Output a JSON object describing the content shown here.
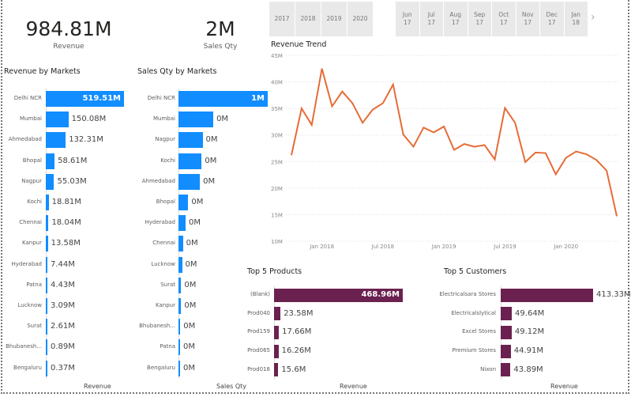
{
  "cards": {
    "revenue": {
      "value": "984.81M",
      "label": "Revenue"
    },
    "sales_qty": {
      "value": "2M",
      "label": "Sales Qty"
    }
  },
  "year_slicer": [
    "2017",
    "2018",
    "2019",
    "2020"
  ],
  "month_slicer": [
    "Jun 17",
    "Jul 17",
    "Aug 17",
    "Sep 17",
    "Oct 17",
    "Nov 17",
    "Dec 17",
    "Jan 18"
  ],
  "colors": {
    "blue": "#118dff",
    "line": "#e66c37",
    "maroon": "#6b2150"
  },
  "revenue_by_markets": {
    "title": "Revenue by Markets",
    "axis_title": "Revenue",
    "items": [
      {
        "name": "Delhi NCR",
        "value": 519.51,
        "label": "519.51M"
      },
      {
        "name": "Mumbai",
        "value": 150.08,
        "label": "150.08M"
      },
      {
        "name": "Ahmedabad",
        "value": 132.31,
        "label": "132.31M"
      },
      {
        "name": "Bhopal",
        "value": 58.61,
        "label": "58.61M"
      },
      {
        "name": "Nagpur",
        "value": 55.03,
        "label": "55.03M"
      },
      {
        "name": "Kochi",
        "value": 18.81,
        "label": "18.81M"
      },
      {
        "name": "Chennai",
        "value": 18.04,
        "label": "18.04M"
      },
      {
        "name": "Kanpur",
        "value": 13.58,
        "label": "13.58M"
      },
      {
        "name": "Hyderabad",
        "value": 7.44,
        "label": "7.44M"
      },
      {
        "name": "Patna",
        "value": 4.43,
        "label": "4.43M"
      },
      {
        "name": "Lucknow",
        "value": 3.09,
        "label": "3.09M"
      },
      {
        "name": "Surat",
        "value": 2.61,
        "label": "2.61M"
      },
      {
        "name": "Bhubanesh...",
        "value": 0.89,
        "label": "0.89M"
      },
      {
        "name": "Bengaluru",
        "value": 0.37,
        "label": "0.37M"
      }
    ]
  },
  "sales_qty_by_markets": {
    "title": "Sales Qty by Markets",
    "axis_title": "Sales Qty",
    "items": [
      {
        "name": "Delhi NCR",
        "value": 1.0,
        "label": "1M"
      },
      {
        "name": "Mumbai",
        "value": 0.39,
        "label": "0M"
      },
      {
        "name": "Nagpur",
        "value": 0.27,
        "label": "0M"
      },
      {
        "name": "Kochi",
        "value": 0.26,
        "label": "0M"
      },
      {
        "name": "Ahmedabad",
        "value": 0.24,
        "label": "0M"
      },
      {
        "name": "Bhopal",
        "value": 0.11,
        "label": "0M"
      },
      {
        "name": "Hyderabad",
        "value": 0.08,
        "label": "0M"
      },
      {
        "name": "Chennai",
        "value": 0.05,
        "label": "0M"
      },
      {
        "name": "Lucknow",
        "value": 0.04,
        "label": "0M"
      },
      {
        "name": "Surat",
        "value": 0.03,
        "label": "0M"
      },
      {
        "name": "Kanpur",
        "value": 0.03,
        "label": "0M"
      },
      {
        "name": "Bhubanesh...",
        "value": 0.02,
        "label": "0M"
      },
      {
        "name": "Patna",
        "value": 0.01,
        "label": "0M"
      },
      {
        "name": "Bengaluru",
        "value": 0.01,
        "label": "0M"
      }
    ]
  },
  "chart_data": {
    "type": "line",
    "title": "Revenue Trend",
    "ylim": [
      10,
      45
    ],
    "y_unit": "M",
    "y_ticks": [
      "10M",
      "15M",
      "20M",
      "25M",
      "30M",
      "35M",
      "40M",
      "45M"
    ],
    "x_ticks": [
      "Jan 2018",
      "Jul 2018",
      "Jan 2019",
      "Jul 2019",
      "Jan 2020"
    ],
    "x": [
      "2017-10",
      "2017-11",
      "2017-12",
      "2018-01",
      "2018-02",
      "2018-03",
      "2018-04",
      "2018-05",
      "2018-06",
      "2018-07",
      "2018-08",
      "2018-09",
      "2018-10",
      "2018-11",
      "2018-12",
      "2019-01",
      "2019-02",
      "2019-03",
      "2019-04",
      "2019-05",
      "2019-06",
      "2019-07",
      "2019-08",
      "2019-09",
      "2019-10",
      "2019-11",
      "2019-12",
      "2020-01",
      "2020-02",
      "2020-03",
      "2020-04",
      "2020-05",
      "2020-06"
    ],
    "values": [
      26.2,
      35.0,
      31.9,
      42.5,
      35.4,
      38.2,
      36.0,
      32.3,
      34.8,
      36.0,
      39.5,
      30.1,
      27.8,
      31.4,
      30.5,
      31.6,
      27.2,
      28.3,
      27.8,
      28.1,
      25.4,
      35.1,
      32.3,
      24.9,
      26.7,
      26.6,
      22.6,
      25.7,
      26.9,
      26.4,
      25.3,
      23.3,
      14.7
    ],
    "grid": true
  },
  "top_products": {
    "title": "Top 5 Products",
    "axis_title": "Revenue",
    "items": [
      {
        "name": "(Blank)",
        "value": 468.96,
        "label": "468.96M"
      },
      {
        "name": "Prod040",
        "value": 23.58,
        "label": "23.58M"
      },
      {
        "name": "Prod159",
        "value": 17.66,
        "label": "17.66M"
      },
      {
        "name": "Prod065",
        "value": 16.26,
        "label": "16.26M"
      },
      {
        "name": "Prod018",
        "value": 15.6,
        "label": "15.6M"
      }
    ]
  },
  "top_customers": {
    "title": "Top 5 Customers",
    "axis_title": "Revenue",
    "items": [
      {
        "name": "Electricalsara Stores",
        "value": 413.33,
        "label": "413.33M"
      },
      {
        "name": "Electricalslytical",
        "value": 49.64,
        "label": "49.64M"
      },
      {
        "name": "Excel Stores",
        "value": 49.12,
        "label": "49.12M"
      },
      {
        "name": "Premium Stores",
        "value": 44.91,
        "label": "44.91M"
      },
      {
        "name": "Nixon",
        "value": 43.89,
        "label": "43.89M"
      }
    ]
  }
}
